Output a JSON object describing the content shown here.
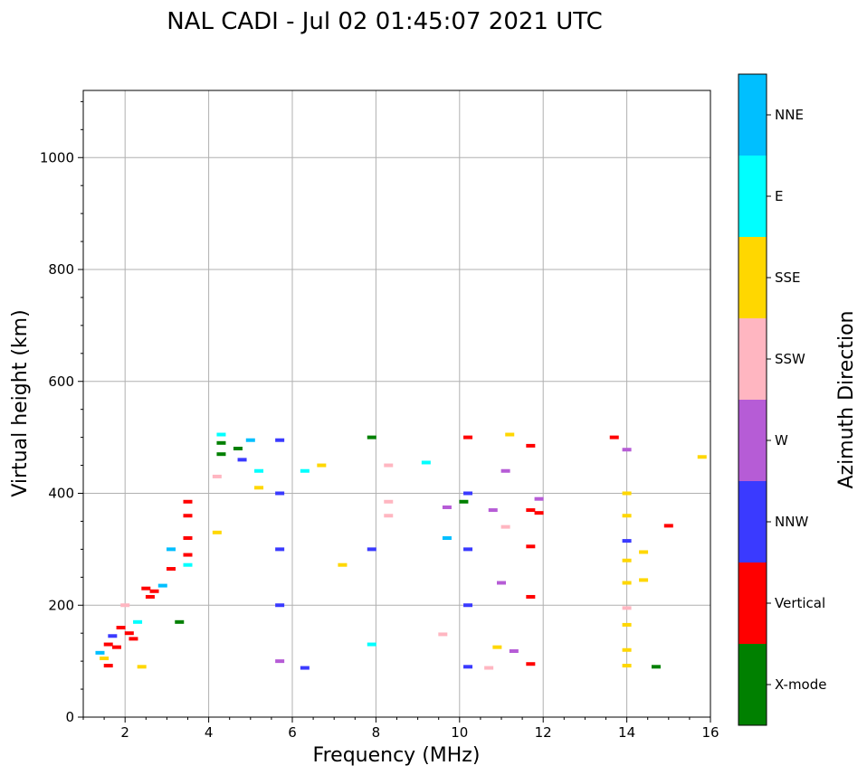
{
  "chart_data": {
    "type": "scatter",
    "title": "NAL CADI - Jul 02 01:45:07 2021 UTC",
    "xlabel": "Frequency (MHz)",
    "ylabel": "Virtual height (km)",
    "xlim": [
      1,
      16
    ],
    "ylim": [
      0,
      1120
    ],
    "xticks": [
      2,
      4,
      6,
      8,
      10,
      12,
      14,
      16
    ],
    "yticks": [
      0,
      200,
      400,
      600,
      800,
      1000
    ],
    "grid": true,
    "colorbar": {
      "label": "Azimuth Direction",
      "categories": [
        {
          "name": "X-mode",
          "color": "#008000"
        },
        {
          "name": "Vertical",
          "color": "#ff0000"
        },
        {
          "name": "NNW",
          "color": "#3a3aff"
        },
        {
          "name": "W",
          "color": "#b65cd6"
        },
        {
          "name": "SSW",
          "color": "#ffb6c1"
        },
        {
          "name": "SSE",
          "color": "#ffd700"
        },
        {
          "name": "E",
          "color": "#00ffff"
        },
        {
          "name": "NNE",
          "color": "#00bfff"
        }
      ]
    },
    "points": [
      {
        "f": 1.4,
        "h": 115,
        "dir": "NNE"
      },
      {
        "f": 1.5,
        "h": 105,
        "dir": "SSE"
      },
      {
        "f": 1.6,
        "h": 92,
        "dir": "Vertical"
      },
      {
        "f": 1.6,
        "h": 130,
        "dir": "Vertical"
      },
      {
        "f": 1.7,
        "h": 145,
        "dir": "NNW"
      },
      {
        "f": 1.8,
        "h": 125,
        "dir": "Vertical"
      },
      {
        "f": 1.9,
        "h": 160,
        "dir": "Vertical"
      },
      {
        "f": 2.0,
        "h": 200,
        "dir": "SSW"
      },
      {
        "f": 2.1,
        "h": 150,
        "dir": "Vertical"
      },
      {
        "f": 2.2,
        "h": 140,
        "dir": "Vertical"
      },
      {
        "f": 2.3,
        "h": 170,
        "dir": "E"
      },
      {
        "f": 2.4,
        "h": 90,
        "dir": "SSE"
      },
      {
        "f": 2.5,
        "h": 230,
        "dir": "Vertical"
      },
      {
        "f": 2.6,
        "h": 215,
        "dir": "Vertical"
      },
      {
        "f": 2.7,
        "h": 225,
        "dir": "Vertical"
      },
      {
        "f": 2.9,
        "h": 235,
        "dir": "NNE"
      },
      {
        "f": 3.1,
        "h": 265,
        "dir": "Vertical"
      },
      {
        "f": 3.1,
        "h": 300,
        "dir": "NNE"
      },
      {
        "f": 3.3,
        "h": 170,
        "dir": "X-mode"
      },
      {
        "f": 3.5,
        "h": 290,
        "dir": "Vertical"
      },
      {
        "f": 3.5,
        "h": 320,
        "dir": "Vertical"
      },
      {
        "f": 3.5,
        "h": 360,
        "dir": "Vertical"
      },
      {
        "f": 3.5,
        "h": 385,
        "dir": "Vertical"
      },
      {
        "f": 3.5,
        "h": 272,
        "dir": "E"
      },
      {
        "f": 4.2,
        "h": 330,
        "dir": "SSE"
      },
      {
        "f": 4.2,
        "h": 430,
        "dir": "SSW"
      },
      {
        "f": 4.3,
        "h": 470,
        "dir": "X-mode"
      },
      {
        "f": 4.3,
        "h": 490,
        "dir": "X-mode"
      },
      {
        "f": 4.3,
        "h": 505,
        "dir": "E"
      },
      {
        "f": 4.7,
        "h": 480,
        "dir": "X-mode"
      },
      {
        "f": 4.8,
        "h": 460,
        "dir": "NNW"
      },
      {
        "f": 5.0,
        "h": 495,
        "dir": "NNE"
      },
      {
        "f": 5.2,
        "h": 440,
        "dir": "E"
      },
      {
        "f": 5.2,
        "h": 410,
        "dir": "SSE"
      },
      {
        "f": 5.7,
        "h": 495,
        "dir": "NNW"
      },
      {
        "f": 5.7,
        "h": 400,
        "dir": "NNW"
      },
      {
        "f": 5.7,
        "h": 300,
        "dir": "NNW"
      },
      {
        "f": 5.7,
        "h": 200,
        "dir": "NNW"
      },
      {
        "f": 5.7,
        "h": 100,
        "dir": "W"
      },
      {
        "f": 6.3,
        "h": 88,
        "dir": "NNW"
      },
      {
        "f": 6.3,
        "h": 440,
        "dir": "E"
      },
      {
        "f": 6.7,
        "h": 450,
        "dir": "SSE"
      },
      {
        "f": 7.2,
        "h": 272,
        "dir": "SSE"
      },
      {
        "f": 7.9,
        "h": 500,
        "dir": "X-mode"
      },
      {
        "f": 7.9,
        "h": 300,
        "dir": "NNW"
      },
      {
        "f": 7.9,
        "h": 130,
        "dir": "E"
      },
      {
        "f": 8.3,
        "h": 450,
        "dir": "SSW"
      },
      {
        "f": 8.3,
        "h": 385,
        "dir": "SSW"
      },
      {
        "f": 8.3,
        "h": 360,
        "dir": "SSW"
      },
      {
        "f": 9.2,
        "h": 455,
        "dir": "E"
      },
      {
        "f": 9.6,
        "h": 148,
        "dir": "SSW"
      },
      {
        "f": 9.7,
        "h": 320,
        "dir": "NNE"
      },
      {
        "f": 9.7,
        "h": 375,
        "dir": "W"
      },
      {
        "f": 10.2,
        "h": 500,
        "dir": "Vertical"
      },
      {
        "f": 10.2,
        "h": 400,
        "dir": "NNW"
      },
      {
        "f": 10.2,
        "h": 300,
        "dir": "NNW"
      },
      {
        "f": 10.2,
        "h": 200,
        "dir": "NNW"
      },
      {
        "f": 10.2,
        "h": 90,
        "dir": "NNW"
      },
      {
        "f": 10.1,
        "h": 385,
        "dir": "X-mode"
      },
      {
        "f": 10.7,
        "h": 88,
        "dir": "SSW"
      },
      {
        "f": 10.8,
        "h": 370,
        "dir": "W"
      },
      {
        "f": 10.9,
        "h": 125,
        "dir": "SSE"
      },
      {
        "f": 11.0,
        "h": 240,
        "dir": "W"
      },
      {
        "f": 11.1,
        "h": 340,
        "dir": "SSW"
      },
      {
        "f": 11.1,
        "h": 440,
        "dir": "W"
      },
      {
        "f": 11.2,
        "h": 505,
        "dir": "SSE"
      },
      {
        "f": 11.3,
        "h": 118,
        "dir": "W"
      },
      {
        "f": 11.7,
        "h": 485,
        "dir": "Vertical"
      },
      {
        "f": 11.7,
        "h": 370,
        "dir": "Vertical"
      },
      {
        "f": 11.7,
        "h": 305,
        "dir": "Vertical"
      },
      {
        "f": 11.7,
        "h": 215,
        "dir": "Vertical"
      },
      {
        "f": 11.7,
        "h": 95,
        "dir": "Vertical"
      },
      {
        "f": 11.9,
        "h": 365,
        "dir": "Vertical"
      },
      {
        "f": 11.9,
        "h": 390,
        "dir": "W"
      },
      {
        "f": 13.7,
        "h": 500,
        "dir": "Vertical"
      },
      {
        "f": 14.0,
        "h": 478,
        "dir": "W"
      },
      {
        "f": 14.0,
        "h": 400,
        "dir": "SSE"
      },
      {
        "f": 14.0,
        "h": 360,
        "dir": "SSE"
      },
      {
        "f": 14.0,
        "h": 315,
        "dir": "NNW"
      },
      {
        "f": 14.0,
        "h": 280,
        "dir": "SSE"
      },
      {
        "f": 14.0,
        "h": 240,
        "dir": "SSE"
      },
      {
        "f": 14.0,
        "h": 195,
        "dir": "SSW"
      },
      {
        "f": 14.0,
        "h": 165,
        "dir": "SSE"
      },
      {
        "f": 14.0,
        "h": 120,
        "dir": "SSE"
      },
      {
        "f": 14.0,
        "h": 92,
        "dir": "SSE"
      },
      {
        "f": 14.4,
        "h": 295,
        "dir": "SSE"
      },
      {
        "f": 14.4,
        "h": 245,
        "dir": "SSE"
      },
      {
        "f": 14.7,
        "h": 90,
        "dir": "X-mode"
      },
      {
        "f": 15.0,
        "h": 342,
        "dir": "Vertical"
      },
      {
        "f": 15.8,
        "h": 465,
        "dir": "SSE"
      }
    ]
  }
}
